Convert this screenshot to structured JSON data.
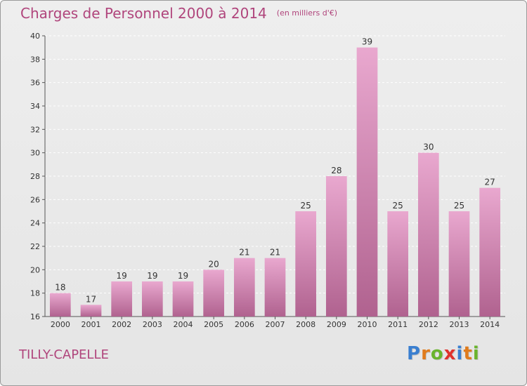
{
  "header": {
    "title": "Charges de Personnel 2000 à 2014",
    "subtitle": "(en milliers d'€)"
  },
  "footer": {
    "commune": "TILLY-CAPELLE",
    "logo_letters": [
      "P",
      "r",
      "o",
      "x",
      "i",
      "t",
      "i"
    ],
    "logo_colors": [
      "#3a7fd0",
      "#e07b1c",
      "#6ab42d",
      "#e0322c",
      "#3a7fd0",
      "#e07b1c",
      "#6ab42d"
    ]
  },
  "colors": {
    "bar_light": "#e9a8cf",
    "bar_dark": "#b0628f",
    "title": "#b0457c",
    "grid": "#ffffff"
  },
  "chart_data": {
    "type": "bar",
    "title": "Charges de Personnel 2000 à 2014",
    "subtitle": "(en milliers d'€)",
    "categories": [
      "2000",
      "2001",
      "2002",
      "2003",
      "2004",
      "2005",
      "2006",
      "2007",
      "2008",
      "2009",
      "2010",
      "2011",
      "2012",
      "2013",
      "2014"
    ],
    "values": [
      18,
      17,
      19,
      19,
      19,
      20,
      21,
      21,
      25,
      28,
      39,
      25,
      30,
      25,
      27
    ],
    "xlabel": "",
    "ylabel": "",
    "ylim": [
      16,
      40
    ],
    "yticks": [
      16,
      18,
      20,
      22,
      24,
      26,
      28,
      30,
      32,
      34,
      36,
      38,
      40
    ],
    "grid": true,
    "legend": "none"
  }
}
